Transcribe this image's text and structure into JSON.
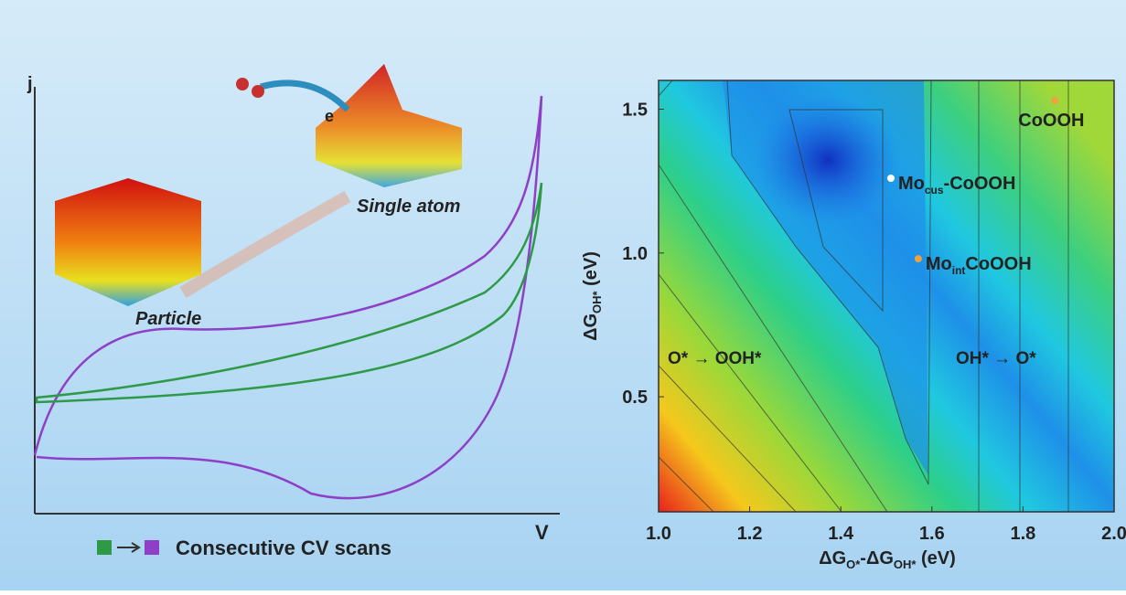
{
  "schematic": {
    "y_axis_label": "j",
    "x_axis_label": "V",
    "electron_label": "e",
    "single_atom_label": "Single atom",
    "particle_label": "Particle",
    "legend_label": "Consecutive CV scans",
    "legend_colors": [
      "#2e9a46",
      "#8e3fc8"
    ]
  },
  "chart_data": {
    "type": "contour",
    "x_label": {
      "main": "ΔG",
      "sub1": "O*",
      "mid": "-ΔG",
      "sub2": "OH*",
      "end": " (eV)"
    },
    "y_label": {
      "main": "ΔG",
      "sub": "OH*",
      "end": " (eV)"
    },
    "xlim": [
      1.0,
      2.0
    ],
    "ylim": [
      0.1,
      1.6
    ],
    "xticks": [
      {
        "value": 1.0,
        "label": "1.0"
      },
      1.2,
      1.4,
      1.6,
      1.8,
      {
        "value": 2.0,
        "label": "2.0"
      }
    ],
    "yticks": [
      0.5,
      {
        "value": 1.0,
        "label": "1.0"
      },
      1.5
    ],
    "points": [
      {
        "label": {
          "main": "CoOOH",
          "sub": "",
          "rest": ""
        },
        "x": 1.87,
        "y": 1.53,
        "color": "#f0a040"
      },
      {
        "label": {
          "main": "Mo",
          "sub": "cus",
          "rest": "-CoOOH"
        },
        "x": 1.51,
        "y": 1.26,
        "color": "#ffffff"
      },
      {
        "label": {
          "main": "Mo",
          "sub": "int",
          "rest": "CoOOH"
        },
        "x": 1.57,
        "y": 0.98,
        "color": "#f0a040"
      }
    ],
    "regions": [
      "O* → OOH*",
      "OH* → O*"
    ]
  }
}
